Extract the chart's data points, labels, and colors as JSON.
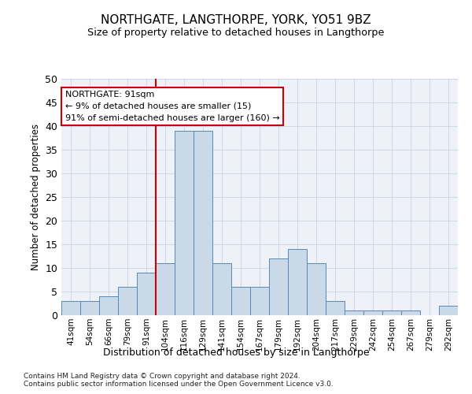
{
  "title": "NORTHGATE, LANGTHORPE, YORK, YO51 9BZ",
  "subtitle": "Size of property relative to detached houses in Langthorpe",
  "xlabel": "Distribution of detached houses by size in Langthorpe",
  "ylabel": "Number of detached properties",
  "categories": [
    "41sqm",
    "54sqm",
    "66sqm",
    "79sqm",
    "91sqm",
    "104sqm",
    "116sqm",
    "129sqm",
    "141sqm",
    "154sqm",
    "167sqm",
    "179sqm",
    "192sqm",
    "204sqm",
    "217sqm",
    "229sqm",
    "242sqm",
    "254sqm",
    "267sqm",
    "279sqm",
    "292sqm"
  ],
  "values": [
    3,
    3,
    4,
    6,
    9,
    11,
    39,
    39,
    11,
    6,
    6,
    12,
    14,
    11,
    3,
    1,
    1,
    1,
    1,
    0,
    2
  ],
  "bar_color": "#c9d9e8",
  "bar_edge_color": "#5a8ab0",
  "vline_color": "#cc0000",
  "annotation_line1": "NORTHGATE: 91sqm",
  "annotation_line2": "← 9% of detached houses are smaller (15)",
  "annotation_line3": "91% of semi-detached houses are larger (160) →",
  "annotation_box_color": "#ffffff",
  "annotation_box_edge_color": "#cc0000",
  "ylim": [
    0,
    50
  ],
  "yticks": [
    0,
    5,
    10,
    15,
    20,
    25,
    30,
    35,
    40,
    45,
    50
  ],
  "grid_color": "#d0d8e8",
  "bg_color": "#eef2f8",
  "footnote_line1": "Contains HM Land Registry data © Crown copyright and database right 2024.",
  "footnote_line2": "Contains public sector information licensed under the Open Government Licence v3.0."
}
